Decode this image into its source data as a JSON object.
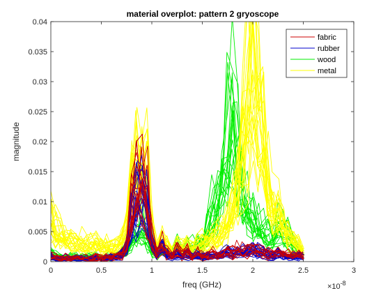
{
  "chart_data": {
    "type": "line",
    "title": "material overplot: pattern 2 gryoscope",
    "xlabel": "freq (GHz)",
    "ylabel": "magnitude",
    "x_exponent_label": "×10",
    "x_exponent_power": "-8",
    "xlim": [
      0,
      3
    ],
    "ylim": [
      0,
      0.04
    ],
    "x_ticks": [
      0,
      0.5,
      1,
      1.5,
      2,
      2.5,
      3
    ],
    "x_tick_labels": [
      "0",
      "0.5",
      "1",
      "1.5",
      "2",
      "2.5",
      "3"
    ],
    "y_ticks": [
      0,
      0.005,
      0.01,
      0.015,
      0.02,
      0.025,
      0.03,
      0.035,
      0.04
    ],
    "y_tick_labels": [
      "0",
      "0.005",
      "0.01",
      "0.015",
      "0.02",
      "0.025",
      "0.03",
      "0.035",
      "0.04"
    ],
    "grid": false,
    "legend_position": "top-right",
    "x": [
      0,
      0.05,
      0.1,
      0.15,
      0.2,
      0.25,
      0.3,
      0.35,
      0.4,
      0.45,
      0.5,
      0.55,
      0.6,
      0.65,
      0.7,
      0.75,
      0.8,
      0.85,
      0.9,
      0.95,
      1.0,
      1.05,
      1.1,
      1.15,
      1.2,
      1.25,
      1.3,
      1.35,
      1.4,
      1.45,
      1.5,
      1.55,
      1.6,
      1.65,
      1.7,
      1.75,
      1.8,
      1.85,
      1.9,
      1.95,
      2.0,
      2.05,
      2.1,
      2.15,
      2.2,
      2.25,
      2.3,
      2.35,
      2.4,
      2.45,
      2.5
    ],
    "series": [
      {
        "name": "fabric",
        "color": "#cc0000",
        "values": [
          0.0012,
          0.0008,
          0.0006,
          0.0007,
          0.0005,
          0.0008,
          0.0006,
          0.0007,
          0.0005,
          0.0008,
          0.0006,
          0.0007,
          0.0008,
          0.0012,
          0.0015,
          0.003,
          0.009,
          0.0145,
          0.016,
          0.012,
          0.004,
          0.0015,
          0.003,
          0.0015,
          0.001,
          0.002,
          0.0012,
          0.0018,
          0.001,
          0.0015,
          0.001,
          0.0012,
          0.0015,
          0.0012,
          0.0016,
          0.002,
          0.0015,
          0.0022,
          0.0018,
          0.002,
          0.0025,
          0.002,
          0.0018,
          0.0015,
          0.0012,
          0.0018,
          0.0015,
          0.0012,
          0.001,
          0.0012,
          0.001
        ]
      },
      {
        "name": "rubber",
        "color": "#0000cc",
        "values": [
          0.001,
          0.0007,
          0.0006,
          0.0006,
          0.0005,
          0.0006,
          0.0005,
          0.0006,
          0.0005,
          0.0006,
          0.0005,
          0.0006,
          0.0007,
          0.001,
          0.0012,
          0.0025,
          0.008,
          0.012,
          0.0125,
          0.01,
          0.0035,
          0.0012,
          0.0025,
          0.0012,
          0.0009,
          0.0016,
          0.001,
          0.0015,
          0.0009,
          0.0012,
          0.0009,
          0.001,
          0.0012,
          0.001,
          0.0014,
          0.0018,
          0.0014,
          0.002,
          0.0016,
          0.0018,
          0.0022,
          0.0018,
          0.0016,
          0.0013,
          0.001,
          0.0015,
          0.0013,
          0.001,
          0.0009,
          0.001,
          0.0009
        ]
      },
      {
        "name": "wood",
        "color": "#00ee00",
        "values": [
          0.0015,
          0.001,
          0.0008,
          0.0009,
          0.0008,
          0.0009,
          0.0008,
          0.0009,
          0.0008,
          0.0009,
          0.0008,
          0.0009,
          0.001,
          0.0012,
          0.0015,
          0.002,
          0.004,
          0.006,
          0.0065,
          0.005,
          0.0025,
          0.0015,
          0.002,
          0.0015,
          0.0015,
          0.0025,
          0.002,
          0.003,
          0.0025,
          0.003,
          0.004,
          0.006,
          0.009,
          0.012,
          0.016,
          0.022,
          0.027,
          0.019,
          0.013,
          0.01,
          0.008,
          0.007,
          0.006,
          0.005,
          0.0045,
          0.006,
          0.0055,
          0.005,
          0.004,
          0.002,
          0.0015
        ]
      },
      {
        "name": "metal",
        "color": "#ffff00",
        "values": [
          0.0085,
          0.006,
          0.005,
          0.0045,
          0.0042,
          0.004,
          0.0038,
          0.0037,
          0.0035,
          0.0034,
          0.0033,
          0.0032,
          0.003,
          0.0032,
          0.004,
          0.0075,
          0.014,
          0.0195,
          0.0205,
          0.016,
          0.006,
          0.0025,
          0.0045,
          0.003,
          0.002,
          0.003,
          0.0025,
          0.003,
          0.0025,
          0.003,
          0.0035,
          0.004,
          0.0045,
          0.005,
          0.006,
          0.008,
          0.011,
          0.015,
          0.025,
          0.033,
          0.038,
          0.034,
          0.024,
          0.016,
          0.011,
          0.009,
          0.007,
          0.0055,
          0.004,
          0.003,
          0.002
        ]
      }
    ]
  }
}
